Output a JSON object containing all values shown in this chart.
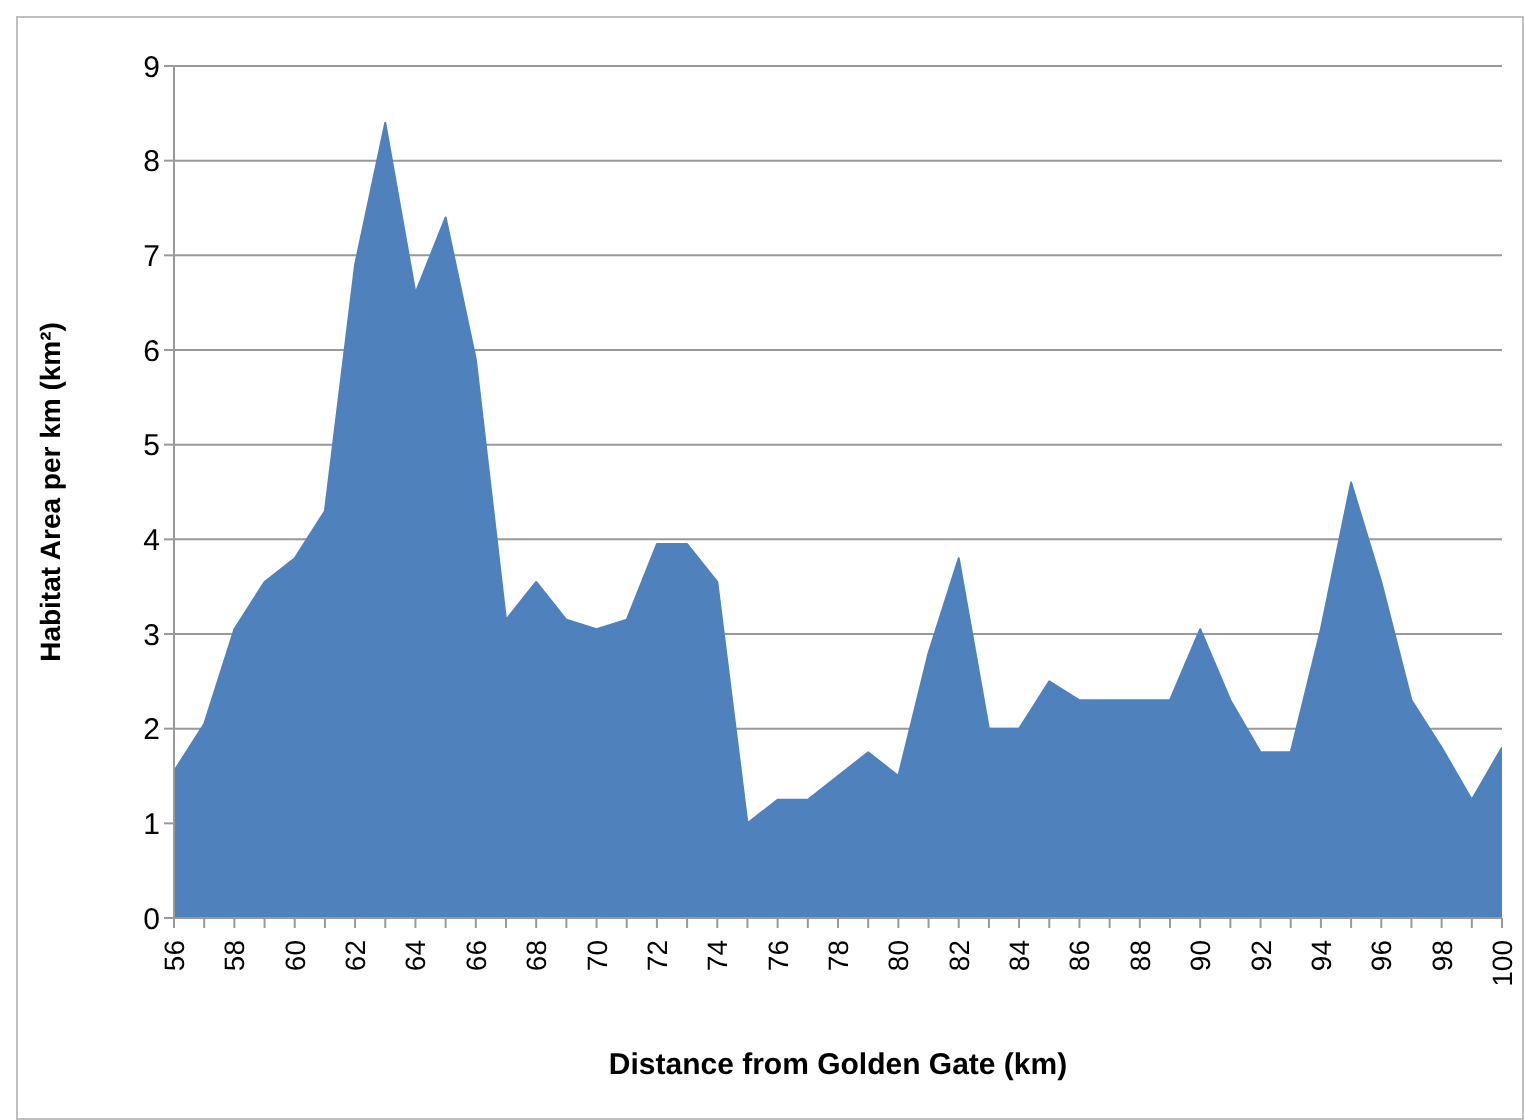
{
  "chart_data": {
    "type": "area",
    "xlabel": "Distance from Golden Gate (km)",
    "ylabel": "Habitat Area per km (km²)",
    "x": [
      56,
      57,
      58,
      59,
      60,
      61,
      62,
      63,
      64,
      65,
      66,
      67,
      68,
      69,
      70,
      71,
      72,
      73,
      74,
      75,
      76,
      77,
      78,
      79,
      80,
      81,
      82,
      83,
      84,
      85,
      86,
      87,
      88,
      89,
      90,
      91,
      92,
      93,
      94,
      95,
      96,
      97,
      98,
      99,
      100
    ],
    "series": [
      {
        "color": "#4f81bd",
        "values": [
          1.55,
          2.05,
          3.05,
          3.55,
          3.8,
          4.3,
          6.9,
          8.4,
          6.6,
          7.4,
          5.9,
          3.15,
          3.55,
          3.15,
          3.05,
          3.15,
          3.95,
          3.95,
          3.55,
          1.0,
          1.25,
          1.25,
          1.5,
          1.75,
          1.5,
          2.8,
          3.8,
          2.0,
          2.0,
          2.5,
          2.3,
          2.3,
          2.3,
          2.3,
          3.05,
          2.3,
          1.75,
          1.75,
          3.05,
          4.6,
          3.55,
          2.3,
          1.8,
          1.25,
          1.8
        ]
      }
    ],
    "xlim": [
      56,
      100
    ],
    "xticks": [
      56,
      {
        "value": 57,
        "label": null
      },
      58,
      {
        "value": 59,
        "label": null
      },
      60,
      {
        "value": 61,
        "label": null
      },
      62,
      {
        "value": 63,
        "label": null
      },
      64,
      {
        "value": 65,
        "label": null
      },
      66,
      {
        "value": 67,
        "label": null
      },
      68,
      {
        "value": 69,
        "label": null
      },
      70,
      {
        "value": 71,
        "label": null
      },
      72,
      {
        "value": 73,
        "label": null
      },
      74,
      {
        "value": 75,
        "label": null
      },
      76,
      {
        "value": 77,
        "label": null
      },
      78,
      {
        "value": 79,
        "label": null
      },
      80,
      {
        "value": 81,
        "label": null
      },
      82,
      {
        "value": 83,
        "label": null
      },
      84,
      {
        "value": 85,
        "label": null
      },
      86,
      {
        "value": 87,
        "label": null
      },
      88,
      {
        "value": 89,
        "label": null
      },
      90,
      {
        "value": 91,
        "label": null
      },
      92,
      {
        "value": 93,
        "label": null
      },
      94,
      {
        "value": 95,
        "label": null
      },
      96,
      {
        "value": 97,
        "label": null
      },
      98,
      {
        "value": 99,
        "label": null
      },
      100
    ],
    "ylim": [
      0,
      9
    ],
    "yticks": [
      0,
      1,
      2,
      3,
      4,
      5,
      6,
      7,
      8,
      9
    ],
    "grid": "y",
    "legend": false
  }
}
